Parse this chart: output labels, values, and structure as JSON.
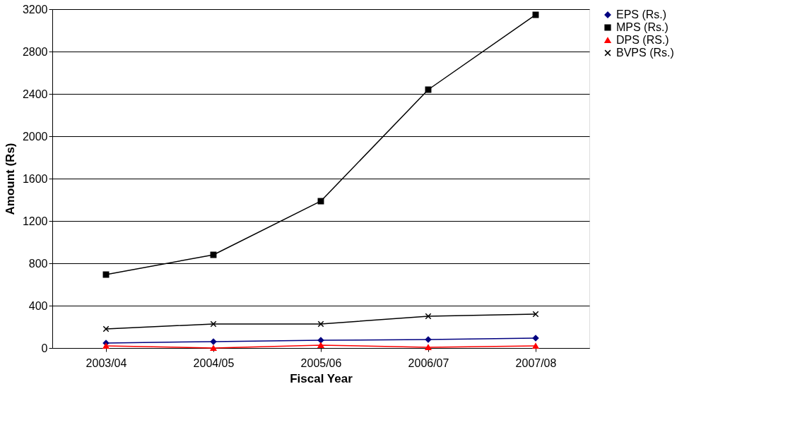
{
  "chart_data": {
    "type": "line",
    "xlabel": "Fiscal Year",
    "ylabel": "Amount (Rs)",
    "categories": [
      "2003/04",
      "2004/05",
      "2005/06",
      "2006/07",
      "2007/08"
    ],
    "series": [
      {
        "name": "EPS (Rs.)",
        "color": "#000080",
        "marker": "diamond",
        "values": [
          47,
          60,
          73,
          80,
          93
        ]
      },
      {
        "name": "MPS (Rs.)",
        "color": "#000000",
        "marker": "square",
        "values": [
          693,
          880,
          1387,
          2440,
          3147
        ]
      },
      {
        "name": "DPS (RS.)",
        "color": "#ff0000",
        "marker": "triangle",
        "values": [
          20,
          0,
          27,
          7,
          20
        ]
      },
      {
        "name": "BVPS (Rs.)",
        "color": "#000000",
        "marker": "cross",
        "values": [
          180,
          227,
          227,
          300,
          320
        ]
      }
    ],
    "ylim": [
      0,
      3200
    ],
    "yticks": [
      0,
      400,
      800,
      1200,
      1600,
      2000,
      2400,
      2800,
      3200
    ],
    "grid": "y",
    "legend": "right",
    "line_style": "solid"
  }
}
